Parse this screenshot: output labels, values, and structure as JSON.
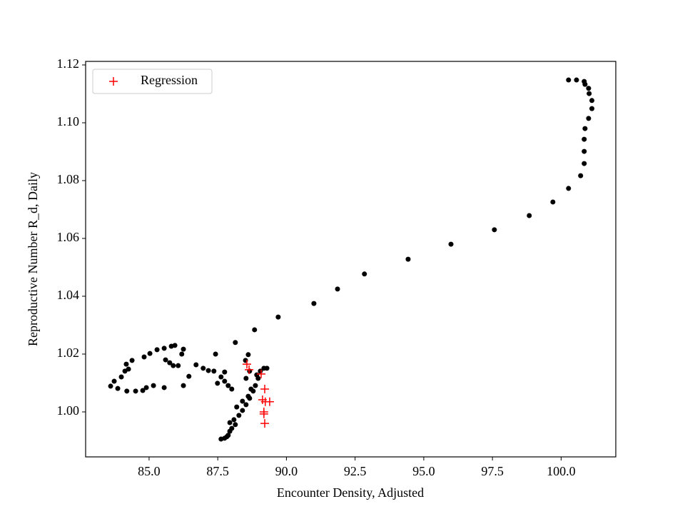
{
  "chart_data": {
    "type": "scatter",
    "xlabel": "Encounter Density, Adjusted",
    "ylabel": "Reproductive Number R_d, Daily",
    "xlim": [
      82.69,
      101.99
    ],
    "ylim": [
      0.98444,
      1.12123
    ],
    "xticks": [
      {
        "value": 85,
        "label": "85.0"
      },
      {
        "value": 87.5,
        "label": "87.5"
      },
      {
        "value": 90,
        "label": "90.0"
      },
      {
        "value": 92.5,
        "label": "92.5"
      },
      {
        "value": 95,
        "label": "95.0"
      },
      {
        "value": 97.5,
        "label": "97.5"
      },
      {
        "value": 100,
        "label": "100.0"
      }
    ],
    "yticks": [
      {
        "value": 1,
        "label": "1.00"
      },
      1.02,
      1.04,
      1.06,
      1.08,
      {
        "value": 1.1,
        "label": "1.10"
      },
      1.12
    ],
    "legend": "upper left",
    "series": [
      {
        "color": "#000000",
        "marker": "dot",
        "x": [
          100.27,
          100.56,
          100.84,
          100.87,
          101.0,
          101.02,
          101.12,
          101.12,
          101.0,
          100.87,
          100.84,
          100.84,
          100.84,
          100.71,
          100.27,
          99.7,
          98.84,
          97.57,
          95.99,
          94.43,
          92.84,
          91.86,
          91.0,
          89.7,
          88.84,
          88.14,
          87.42,
          87.62,
          87.75,
          87.88,
          87.94,
          88.01,
          88.14,
          88.09,
          88.27,
          88.4,
          88.53,
          88.66,
          88.79,
          88.87,
          88.97,
          89.05,
          89.18,
          89.29,
          87.83,
          87.94,
          88.19,
          88.4,
          88.61,
          88.71,
          88.92,
          88.53,
          88.51,
          88.61,
          88.66,
          83.6,
          83.73,
          83.86,
          83.99,
          84.12,
          84.17,
          84.25,
          84.38,
          84.19,
          84.51,
          84.77,
          84.9,
          85.16,
          85.55,
          84.82,
          85.03,
          85.29,
          85.55,
          85.81,
          85.94,
          85.6,
          85.75,
          85.88,
          86.06,
          86.19,
          86.25,
          86.25,
          86.45,
          86.71,
          86.97,
          87.16,
          87.36,
          87.62,
          87.75,
          87.88,
          88.01,
          87.49,
          87.75
        ],
        "y": [
          1.1148,
          1.1148,
          1.1143,
          1.1133,
          1.1119,
          1.1101,
          1.1077,
          1.1049,
          1.1015,
          1.098,
          1.0943,
          1.0901,
          1.0859,
          1.0817,
          1.0773,
          1.0726,
          1.0679,
          1.063,
          1.058,
          1.0528,
          1.0477,
          1.0425,
          1.0375,
          1.0328,
          1.0284,
          1.024,
          1.02,
          0.9906,
          0.9909,
          0.9919,
          0.9933,
          0.9943,
          0.9956,
          0.9973,
          0.9988,
          1.0005,
          1.0025,
          1.0047,
          1.0072,
          1.0091,
          1.0116,
          1.0141,
          1.0151,
          1.0151,
          0.9914,
          0.9963,
          1.0017,
          1.0037,
          1.0054,
          1.0079,
          1.0128,
          1.0116,
          1.0178,
          1.0198,
          1.0141,
          1.0089,
          1.0106,
          1.0081,
          1.0121,
          1.0141,
          1.0165,
          1.0148,
          1.0178,
          1.0072,
          1.0072,
          1.0074,
          1.0084,
          1.0091,
          1.0084,
          1.019,
          1.0202,
          1.0215,
          1.022,
          1.0227,
          1.023,
          1.018,
          1.017,
          1.016,
          1.016,
          1.02,
          1.0217,
          1.0091,
          1.0123,
          1.0163,
          1.0151,
          1.0143,
          1.0141,
          1.0121,
          1.0106,
          1.0091,
          1.0079,
          1.0099,
          1.0138
        ]
      },
      {
        "name": "Regression",
        "color": "#ff0000",
        "marker": "plus",
        "x": [
          88.56,
          88.64,
          89.08,
          89.21,
          89.13,
          89.23,
          89.39,
          89.18,
          89.18,
          89.21
        ],
        "y": [
          1.0165,
          1.0146,
          1.0131,
          1.0079,
          1.0042,
          1.0035,
          1.0035,
          1.0,
          0.9993,
          0.996
        ]
      }
    ]
  }
}
